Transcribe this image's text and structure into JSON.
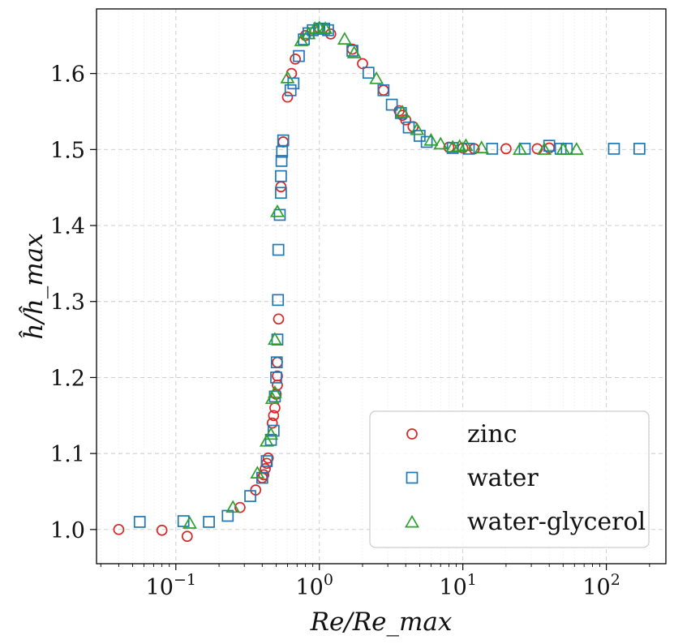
{
  "chart_data": {
    "type": "scatter",
    "title": "",
    "xlabel": "Re/Re_max",
    "ylabel": "ĥ/ĥ_max",
    "xscale": "log",
    "xlim": [
      0.028,
      260
    ],
    "ylim": [
      0.955,
      1.685
    ],
    "yticks": [
      1.0,
      1.1,
      1.2,
      1.3,
      1.4,
      1.5,
      1.6
    ],
    "ytick_labels": [
      "1.0",
      "1.1",
      "1.2",
      "1.3",
      "1.4",
      "1.5",
      "1.6"
    ],
    "xticks": [
      {
        "value": 0.1,
        "base": "10",
        "exp": "−1"
      },
      {
        "value": 1,
        "base": "10",
        "exp": "0"
      },
      {
        "value": 10,
        "base": "10",
        "exp": "1"
      },
      {
        "value": 100,
        "base": "10",
        "exp": "2"
      }
    ],
    "grid": true,
    "legend_position": "bottom-right",
    "colors": {
      "zinc": "#d62728",
      "water": "#1f77b4",
      "water-glycerol": "#2ca02c"
    },
    "series": [
      {
        "name": "zinc",
        "marker": "circle",
        "points": [
          [
            0.04,
            1.0
          ],
          [
            0.08,
            0.999
          ],
          [
            0.12,
            0.991
          ],
          [
            0.28,
            1.029
          ],
          [
            0.36,
            1.052
          ],
          [
            0.4,
            1.068
          ],
          [
            0.41,
            1.072
          ],
          [
            0.42,
            1.08
          ],
          [
            0.43,
            1.087
          ],
          [
            0.44,
            1.094
          ],
          [
            0.47,
            1.14
          ],
          [
            0.48,
            1.15
          ],
          [
            0.49,
            1.16
          ],
          [
            0.5,
            1.178
          ],
          [
            0.51,
            1.19
          ],
          [
            0.51,
            1.202
          ],
          [
            0.51,
            1.22
          ],
          [
            0.52,
            1.277
          ],
          [
            0.54,
            1.451
          ],
          [
            0.56,
            1.51
          ],
          [
            0.6,
            1.569
          ],
          [
            0.64,
            1.6
          ],
          [
            0.68,
            1.619
          ],
          [
            0.8,
            1.65
          ],
          [
            1.0,
            1.66
          ],
          [
            1.2,
            1.652
          ],
          [
            1.7,
            1.632
          ],
          [
            2.0,
            1.613
          ],
          [
            2.8,
            1.578
          ],
          [
            3.6,
            1.551
          ],
          [
            3.8,
            1.545
          ],
          [
            4.0,
            1.539
          ],
          [
            4.5,
            1.53
          ],
          [
            8.0,
            1.503
          ],
          [
            10.0,
            1.502
          ],
          [
            12.0,
            1.501
          ],
          [
            20.0,
            1.501
          ],
          [
            33.0,
            1.501
          ],
          [
            40.0,
            1.502
          ]
        ]
      },
      {
        "name": "water",
        "marker": "square",
        "points": [
          [
            0.056,
            1.01
          ],
          [
            0.113,
            1.011
          ],
          [
            0.17,
            1.01
          ],
          [
            0.23,
            1.018
          ],
          [
            0.33,
            1.044
          ],
          [
            0.4,
            1.068
          ],
          [
            0.43,
            1.09
          ],
          [
            0.46,
            1.118
          ],
          [
            0.48,
            1.13
          ],
          [
            0.49,
            1.175
          ],
          [
            0.5,
            1.2
          ],
          [
            0.505,
            1.22
          ],
          [
            0.51,
            1.25
          ],
          [
            0.515,
            1.302
          ],
          [
            0.518,
            1.368
          ],
          [
            0.53,
            1.414
          ],
          [
            0.54,
            1.443
          ],
          [
            0.54,
            1.465
          ],
          [
            0.545,
            1.485
          ],
          [
            0.55,
            1.497
          ],
          [
            0.56,
            1.512
          ],
          [
            0.63,
            1.578
          ],
          [
            0.66,
            1.587
          ],
          [
            0.72,
            1.623
          ],
          [
            0.78,
            1.645
          ],
          [
            0.84,
            1.653
          ],
          [
            0.9,
            1.657
          ],
          [
            1.0,
            1.659
          ],
          [
            1.08,
            1.659
          ],
          [
            1.15,
            1.657
          ],
          [
            1.7,
            1.63
          ],
          [
            2.2,
            1.601
          ],
          [
            2.8,
            1.578
          ],
          [
            3.2,
            1.559
          ],
          [
            3.7,
            1.548
          ],
          [
            4.2,
            1.529
          ],
          [
            5.0,
            1.518
          ],
          [
            5.6,
            1.51
          ],
          [
            8.5,
            1.502
          ],
          [
            11.0,
            1.501
          ],
          [
            16.0,
            1.501
          ],
          [
            27.0,
            1.501
          ],
          [
            40.0,
            1.505
          ],
          [
            48.0,
            1.501
          ],
          [
            53.0,
            1.501
          ],
          [
            113.0,
            1.501
          ],
          [
            170.0,
            1.501
          ]
        ]
      },
      {
        "name": "water-glycerol",
        "marker": "triangle",
        "points": [
          [
            0.125,
            1.008
          ],
          [
            0.25,
            1.029
          ],
          [
            0.37,
            1.074
          ],
          [
            0.43,
            1.116
          ],
          [
            0.46,
            1.125
          ],
          [
            0.47,
            1.172
          ],
          [
            0.49,
            1.18
          ],
          [
            0.49,
            1.25
          ],
          [
            0.51,
            1.418
          ],
          [
            0.6,
            1.594
          ],
          [
            0.75,
            1.643
          ],
          [
            0.84,
            1.652
          ],
          [
            0.93,
            1.659
          ],
          [
            1.0,
            1.66
          ],
          [
            1.1,
            1.659
          ],
          [
            1.5,
            1.645
          ],
          [
            1.75,
            1.627
          ],
          [
            2.5,
            1.593
          ],
          [
            3.8,
            1.549
          ],
          [
            4.8,
            1.526
          ],
          [
            6.0,
            1.512
          ],
          [
            7.0,
            1.507
          ],
          [
            8.5,
            1.503
          ],
          [
            9.5,
            1.504
          ],
          [
            10.5,
            1.505
          ],
          [
            13.5,
            1.502
          ],
          [
            25.0,
            1.5
          ],
          [
            37.0,
            1.5
          ],
          [
            50.0,
            1.5
          ],
          [
            62.0,
            1.5
          ]
        ]
      }
    ]
  }
}
